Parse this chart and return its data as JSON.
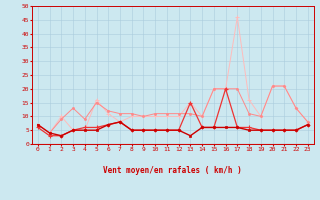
{
  "x": [
    0,
    1,
    2,
    3,
    4,
    5,
    6,
    7,
    8,
    9,
    10,
    11,
    12,
    13,
    14,
    15,
    16,
    17,
    18,
    19,
    20,
    21,
    22,
    23
  ],
  "line1": [
    7,
    4,
    3,
    5,
    5,
    5,
    7,
    8,
    5,
    5,
    5,
    5,
    5,
    3,
    6,
    6,
    6,
    6,
    5,
    5,
    5,
    5,
    5,
    7
  ],
  "line2": [
    6,
    3,
    3,
    5,
    6,
    6,
    7,
    8,
    5,
    5,
    5,
    5,
    5,
    15,
    6,
    6,
    20,
    6,
    6,
    5,
    5,
    5,
    5,
    7
  ],
  "line3": [
    7,
    4,
    10,
    5,
    5,
    16,
    11,
    8,
    10,
    10,
    10,
    10,
    10,
    15,
    10,
    20,
    20,
    46,
    16,
    10,
    21,
    21,
    13,
    8
  ],
  "line4": [
    7,
    4,
    9,
    13,
    9,
    15,
    12,
    11,
    11,
    10,
    11,
    11,
    11,
    11,
    10,
    20,
    20,
    20,
    11,
    10,
    21,
    21,
    13,
    8
  ],
  "bg_color": "#cce8f0",
  "grid_color": "#aaccdd",
  "line1_color": "#cc0000",
  "line2_color": "#ee3333",
  "line3_color": "#ffbbbb",
  "line4_color": "#ff8888",
  "xlabel": "Vent moyen/en rafales ( km/h )",
  "ylim": [
    0,
    50
  ],
  "yticks": [
    0,
    5,
    10,
    15,
    20,
    25,
    30,
    35,
    40,
    45,
    50
  ],
  "xticks": [
    0,
    1,
    2,
    3,
    4,
    5,
    6,
    7,
    8,
    9,
    10,
    11,
    12,
    13,
    14,
    15,
    16,
    17,
    18,
    19,
    20,
    21,
    22,
    23
  ],
  "wind_arrows": [
    "↗",
    "↘",
    "↓",
    "↙",
    "↖",
    "↓",
    "↘",
    "↓",
    "→",
    "←",
    "↖",
    "←",
    "↙",
    "↗",
    "←",
    "↙",
    "↙",
    "↓",
    "↙",
    "↘",
    "↘",
    "→",
    "↗",
    "↘"
  ]
}
